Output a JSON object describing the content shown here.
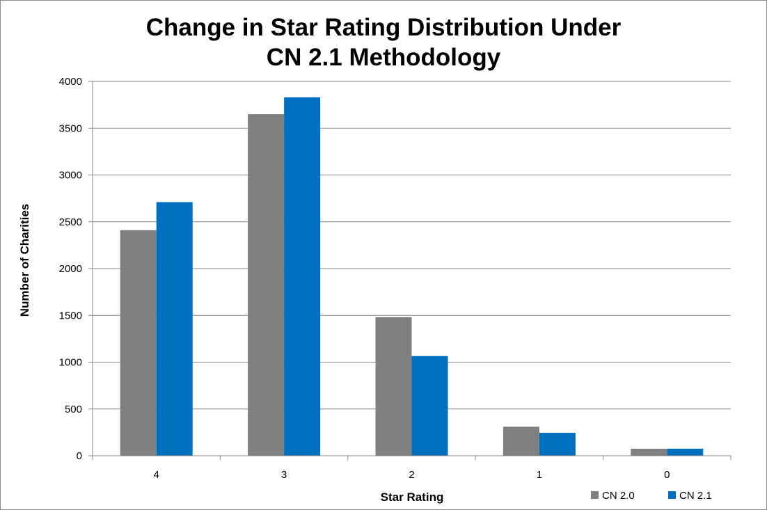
{
  "chart_data": {
    "type": "bar",
    "title_lines": [
      "Change in Star Rating Distribution Under",
      "CN 2.1 Methodology"
    ],
    "xlabel": "Star Rating",
    "ylabel": "Number of Charities",
    "categories": [
      "4",
      "3",
      "2",
      "1",
      "0"
    ],
    "series": [
      {
        "name": "CN 2.0",
        "color": "#808080",
        "values": [
          2410,
          3650,
          1480,
          310,
          75
        ]
      },
      {
        "name": "CN 2.1",
        "color": "#0070c0",
        "values": [
          2710,
          3830,
          1065,
          245,
          75
        ]
      }
    ],
    "ylim": [
      0,
      4000
    ],
    "yticks": [
      0,
      500,
      1000,
      1500,
      2000,
      2500,
      3000,
      3500,
      4000
    ],
    "grid": true,
    "legend_position": "bottom-right"
  }
}
